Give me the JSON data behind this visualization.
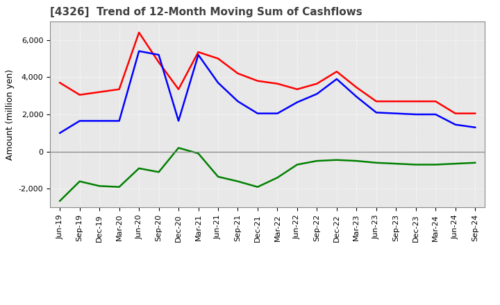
{
  "title": "[4326]  Trend of 12-Month Moving Sum of Cashflows",
  "ylabel": "Amount (million yen)",
  "x_labels": [
    "Jun-19",
    "Sep-19",
    "Dec-19",
    "Mar-20",
    "Jun-20",
    "Sep-20",
    "Dec-20",
    "Mar-21",
    "Jun-21",
    "Sep-21",
    "Dec-21",
    "Mar-22",
    "Jun-22",
    "Sep-22",
    "Dec-22",
    "Mar-23",
    "Jun-23",
    "Sep-23",
    "Dec-23",
    "Mar-24",
    "Jun-24",
    "Sep-24"
  ],
  "operating_cashflow": [
    3700,
    3050,
    3200,
    3350,
    6400,
    4800,
    3350,
    5350,
    5000,
    4200,
    3800,
    3650,
    3350,
    3650,
    4300,
    3450,
    2700,
    2700,
    2700,
    2700,
    2050,
    2050
  ],
  "investing_cashflow": [
    -2650,
    -1600,
    -1850,
    -1900,
    -900,
    -1100,
    200,
    -100,
    -1350,
    -1600,
    -1900,
    -1400,
    -700,
    -500,
    -450,
    -500,
    -600,
    -650,
    -700,
    -700,
    -650,
    -600
  ],
  "free_cashflow": [
    1000,
    1650,
    1650,
    1650,
    5400,
    5200,
    1650,
    5200,
    3700,
    2700,
    2050,
    2050,
    2650,
    3100,
    3900,
    2950,
    2100,
    2050,
    2000,
    2000,
    1450,
    1300
  ],
  "operating_color": "#ff0000",
  "investing_color": "#008000",
  "free_color": "#0000ff",
  "ylim": [
    -3000,
    7000
  ],
  "yticks": [
    -2000,
    0,
    2000,
    4000,
    6000
  ],
  "plot_bg_color": "#e8e8e8",
  "fig_bg_color": "#ffffff",
  "grid_color": "#ffffff",
  "title_color": "#404040",
  "title_fontsize": 11,
  "ylabel_fontsize": 9,
  "tick_fontsize": 8,
  "legend_fontsize": 9
}
